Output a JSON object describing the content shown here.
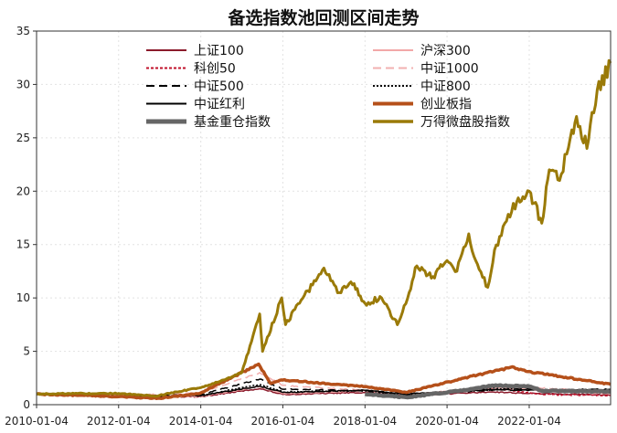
{
  "chart_data": {
    "type": "line",
    "title": "备选指数池回测区间走势",
    "xlabel": "",
    "ylabel": "",
    "ylim": [
      0,
      35
    ],
    "xlim": [
      "2010-01-04",
      "2023-12-29"
    ],
    "yticks": [
      "0",
      "5",
      "10",
      "15",
      "20",
      "25",
      "30",
      "35"
    ],
    "xticks": [
      "2010-01-04",
      "2012-01-04",
      "2014-01-04",
      "2016-01-04",
      "2018-01-04",
      "2020-01-04",
      "2022-01-04"
    ],
    "grid": "on",
    "legend_position": "top",
    "series": [
      {
        "name": "上证100",
        "color": "#8b1a2b",
        "dash": "solid",
        "width": 1.5,
        "x": [
          "2010-01-04",
          "2012-01-04",
          "2014-01-04",
          "2015-06-12",
          "2016-01-04",
          "2018-01-04",
          "2019-01-04",
          "2021-02-10",
          "2022-01-04",
          "2023-12-29"
        ],
        "values": [
          1.0,
          0.78,
          0.75,
          1.5,
          0.95,
          1.15,
          0.85,
          1.2,
          1.05,
          0.9
        ]
      },
      {
        "name": "沪深300",
        "color": "#f2a8a8",
        "dash": "solid",
        "width": 1.5,
        "x": [
          "2010-01-04",
          "2012-01-04",
          "2014-01-04",
          "2015-06-12",
          "2016-01-04",
          "2018-01-04",
          "2019-01-04",
          "2021-02-10",
          "2022-01-04",
          "2023-12-29"
        ],
        "values": [
          1.0,
          0.82,
          0.78,
          1.7,
          1.05,
          1.3,
          0.95,
          1.6,
          1.4,
          1.05
        ]
      },
      {
        "name": "科创50",
        "color": "#c0102a",
        "dash": "short",
        "width": 1.5,
        "x": [
          "2020-01-02",
          "2020-07-15",
          "2021-06-30",
          "2022-04-26",
          "2023-12-29"
        ],
        "values": [
          1.0,
          1.5,
          1.4,
          0.95,
          0.85
        ]
      },
      {
        "name": "中证1000",
        "color": "#f2b0b0",
        "dash": "long",
        "width": 1.5,
        "x": [
          "2010-01-04",
          "2012-01-04",
          "2014-01-04",
          "2015-06-12",
          "2016-01-04",
          "2018-01-04",
          "2019-01-04",
          "2021-09-15",
          "2022-01-04",
          "2023-12-29"
        ],
        "values": [
          1.0,
          0.85,
          1.1,
          3.0,
          1.8,
          1.35,
          0.95,
          1.7,
          1.6,
          1.25
        ]
      },
      {
        "name": "中证500",
        "color": "#000000",
        "dash": "long",
        "width": 1.5,
        "x": [
          "2010-01-04",
          "2012-01-04",
          "2014-01-04",
          "2015-06-12",
          "2016-01-04",
          "2018-01-04",
          "2019-01-04",
          "2021-09-15",
          "2022-01-04",
          "2023-12-29"
        ],
        "values": [
          1.0,
          0.8,
          0.95,
          2.4,
          1.45,
          1.3,
          0.9,
          1.5,
          1.45,
          1.2
        ]
      },
      {
        "name": "中证800",
        "color": "#000000",
        "dash": "dot",
        "width": 1.5,
        "x": [
          "2010-01-04",
          "2012-01-04",
          "2014-01-04",
          "2015-06-12",
          "2016-01-04",
          "2018-01-04",
          "2019-01-04",
          "2021-02-10",
          "2022-01-04",
          "2023-12-29"
        ],
        "values": [
          1.0,
          0.82,
          0.85,
          1.9,
          1.2,
          1.3,
          0.92,
          1.55,
          1.4,
          1.1
        ]
      },
      {
        "name": "中证红利",
        "color": "#000000",
        "dash": "solid",
        "width": 1.5,
        "x": [
          "2010-01-04",
          "2012-01-04",
          "2014-01-04",
          "2015-06-12",
          "2016-01-04",
          "2018-01-04",
          "2019-01-04",
          "2021-02-10",
          "2022-01-04",
          "2023-12-29"
        ],
        "values": [
          1.0,
          0.8,
          0.85,
          1.75,
          1.15,
          1.35,
          1.0,
          1.4,
          1.35,
          1.45
        ]
      },
      {
        "name": "创业板指",
        "color": "#b5501a",
        "dash": "solid",
        "width": 3.5,
        "x": [
          "2010-01-04",
          "2012-01-04",
          "2013-01-04",
          "2014-01-04",
          "2015-06-03",
          "2015-09-15",
          "2016-01-04",
          "2018-01-04",
          "2019-01-04",
          "2020-07-15",
          "2021-07-22",
          "2022-01-04",
          "2023-12-29"
        ],
        "values": [
          1.0,
          0.75,
          0.6,
          1.1,
          3.8,
          2.0,
          2.3,
          1.7,
          1.15,
          2.6,
          3.5,
          3.1,
          1.9
        ]
      },
      {
        "name": "基金重仓指数",
        "color": "#666666",
        "dash": "solid",
        "width": 4.5,
        "x": [
          "2018-01-04",
          "2019-01-04",
          "2020-07-15",
          "2021-02-10",
          "2022-01-04",
          "2022-04-26",
          "2023-12-29"
        ],
        "values": [
          1.0,
          0.7,
          1.4,
          1.8,
          1.7,
          1.3,
          1.25
        ]
      },
      {
        "name": "万得微盘股指数",
        "color": "#9a7a08",
        "dash": "solid",
        "width": 3,
        "x": [
          "2010-01-04",
          "2011-01-04",
          "2012-01-04",
          "2012-12-04",
          "2013-06-01",
          "2014-01-04",
          "2014-06-01",
          "2015-01-04",
          "2015-06-12",
          "2015-07-08",
          "2015-12-25",
          "2016-01-28",
          "2016-06-01",
          "2017-01-04",
          "2017-05-20",
          "2017-09-01",
          "2018-01-04",
          "2018-06-01",
          "2018-10-19",
          "2019-02-01",
          "2019-04-10",
          "2019-09-01",
          "2020-01-04",
          "2020-04-01",
          "2020-07-15",
          "2020-09-15",
          "2020-12-31",
          "2021-03-01",
          "2021-06-01",
          "2021-09-15",
          "2022-01-04",
          "2022-04-26",
          "2022-07-01",
          "2022-10-01",
          "2023-01-04",
          "2023-03-01",
          "2023-06-01",
          "2023-09-01",
          "2023-12-29"
        ],
        "values": [
          1.0,
          1.05,
          1.05,
          0.8,
          1.2,
          1.6,
          2.1,
          3.0,
          8.5,
          5.0,
          10.0,
          7.5,
          9.5,
          12.8,
          10.5,
          11.5,
          9.5,
          10.0,
          7.5,
          10.5,
          13.0,
          12.0,
          13.5,
          12.5,
          16.0,
          13.5,
          11.0,
          14.5,
          17.0,
          19.0,
          20.0,
          17.0,
          22.0,
          21.0,
          25.0,
          27.0,
          24.0,
          29.5,
          32.0
        ]
      }
    ]
  }
}
